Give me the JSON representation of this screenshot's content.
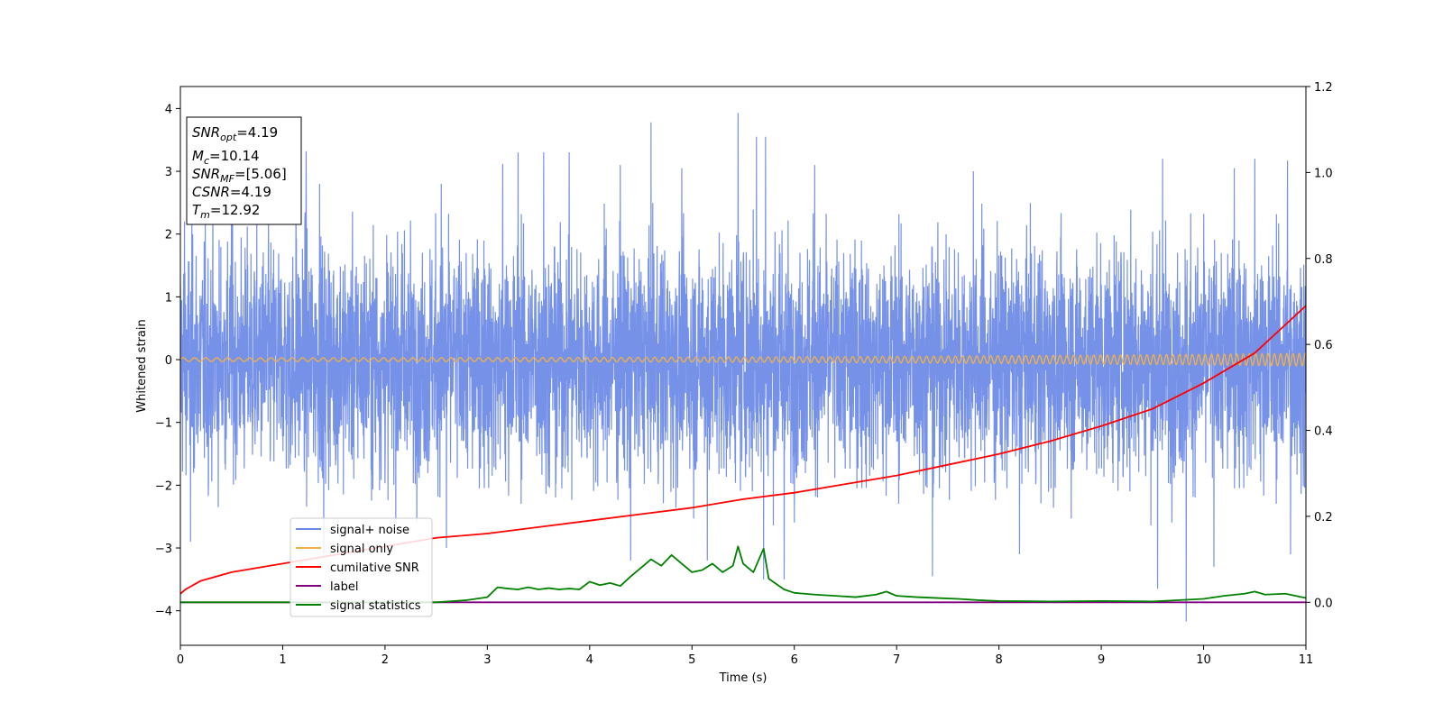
{
  "chart_data": {
    "type": "line",
    "xlabel": "Time (s)",
    "ylabel": "Whitened strain",
    "ylabel_right": "",
    "xlim": [
      0,
      11
    ],
    "ylim": [
      -4.55,
      4.35
    ],
    "ylim_right": [
      -0.1,
      1.2
    ],
    "x_ticks": [
      0,
      1,
      2,
      3,
      4,
      5,
      6,
      7,
      8,
      9,
      10,
      11
    ],
    "y_ticks": [
      -4,
      -3,
      -2,
      -1,
      0,
      1,
      2,
      3,
      4
    ],
    "y_right_ticks": [
      0.0,
      0.2,
      0.4,
      0.6,
      0.8,
      1.0,
      1.2
    ],
    "grid": false,
    "legend_position": "lower-left",
    "info_box": {
      "snr_opt": "4.19",
      "mc": "10.14",
      "snr_mf": "[5.06]",
      "csnr": "4.19",
      "tm": "12.92"
    },
    "series": [
      {
        "name": "signal+ noise",
        "axis": "left",
        "color": "#6a89e6",
        "description_values": {
          "typical_range": [
            -2.5,
            2.6
          ],
          "max": 3.93,
          "min": -4.17
        },
        "peaks": [
          [
            0.04,
            2.2
          ],
          [
            0.5,
            2.7
          ],
          [
            1.13,
            2.8
          ],
          [
            1.23,
            3.32
          ],
          [
            1.36,
            2.8
          ],
          [
            2.55,
            2.8
          ],
          [
            3.15,
            3.12
          ],
          [
            3.3,
            3.3
          ],
          [
            3.55,
            3.3
          ],
          [
            3.8,
            3.3
          ],
          [
            4.3,
            3.1
          ],
          [
            4.6,
            3.78
          ],
          [
            4.9,
            3.05
          ],
          [
            5.45,
            3.93
          ],
          [
            5.63,
            3.55
          ],
          [
            5.72,
            3.55
          ],
          [
            6.2,
            3.1
          ],
          [
            7.75,
            3.0
          ],
          [
            9.6,
            3.2
          ],
          [
            10.3,
            3.05
          ],
          [
            10.5,
            3.2
          ],
          [
            10.82,
            3.17
          ]
        ],
        "troughs": [
          [
            0.1,
            -2.9
          ],
          [
            1.4,
            -3.1
          ],
          [
            2.6,
            -3.0
          ],
          [
            4.4,
            -3.2
          ],
          [
            5.15,
            -3.2
          ],
          [
            5.7,
            -3.5
          ],
          [
            5.9,
            -3.5
          ],
          [
            7.35,
            -3.45
          ],
          [
            8.2,
            -3.1
          ],
          [
            9.55,
            -3.65
          ],
          [
            9.83,
            -4.17
          ],
          [
            10.1,
            -3.3
          ],
          [
            10.85,
            -3.1
          ]
        ]
      },
      {
        "name": "signal only",
        "axis": "left",
        "color": "#f5b042",
        "description_values": {
          "center": 0.0,
          "amplitude_start": 0.03,
          "amplitude_end": 0.1
        }
      },
      {
        "name": "cumilative SNR",
        "axis": "right",
        "color": "#ff0000",
        "x": [
          0,
          0.05,
          0.2,
          0.5,
          1,
          1.5,
          2,
          2.5,
          3,
          3.5,
          4,
          4.5,
          5,
          5.5,
          6,
          6.5,
          7,
          7.5,
          8,
          8.5,
          9,
          9.5,
          10,
          10.5,
          11
        ],
        "values": [
          0.02,
          0.03,
          0.05,
          0.07,
          0.09,
          0.11,
          0.13,
          0.15,
          0.16,
          0.175,
          0.19,
          0.205,
          0.22,
          0.24,
          0.255,
          0.275,
          0.295,
          0.32,
          0.345,
          0.375,
          0.41,
          0.45,
          0.51,
          0.58,
          0.69
        ]
      },
      {
        "name": "label",
        "axis": "right",
        "color": "#800080",
        "x": [
          0,
          11
        ],
        "values": [
          0.0,
          0.0
        ]
      },
      {
        "name": "signal statistics",
        "axis": "right",
        "color": "#008000",
        "x": [
          0,
          1,
          2,
          2.5,
          2.8,
          3.0,
          3.1,
          3.2,
          3.3,
          3.4,
          3.5,
          3.6,
          3.7,
          3.8,
          3.9,
          4.0,
          4.1,
          4.2,
          4.3,
          4.4,
          4.5,
          4.6,
          4.7,
          4.8,
          4.9,
          5.0,
          5.1,
          5.2,
          5.3,
          5.4,
          5.45,
          5.5,
          5.6,
          5.7,
          5.75,
          5.9,
          6.0,
          6.2,
          6.4,
          6.6,
          6.8,
          6.9,
          7.0,
          7.2,
          7.4,
          7.6,
          7.8,
          8.0,
          8.5,
          9.0,
          9.5,
          10.0,
          10.2,
          10.4,
          10.5,
          10.6,
          10.8,
          11.0
        ],
        "values": [
          0.0,
          0.0,
          0.0,
          0.0,
          0.005,
          0.012,
          0.035,
          0.032,
          0.03,
          0.035,
          0.03,
          0.033,
          0.03,
          0.032,
          0.03,
          0.048,
          0.04,
          0.045,
          0.038,
          0.06,
          0.08,
          0.1,
          0.085,
          0.11,
          0.09,
          0.07,
          0.075,
          0.09,
          0.07,
          0.085,
          0.13,
          0.09,
          0.07,
          0.125,
          0.055,
          0.03,
          0.022,
          0.018,
          0.015,
          0.012,
          0.018,
          0.025,
          0.015,
          0.012,
          0.01,
          0.008,
          0.005,
          0.003,
          0.002,
          0.003,
          0.002,
          0.008,
          0.015,
          0.02,
          0.025,
          0.018,
          0.02,
          0.01
        ]
      }
    ]
  }
}
